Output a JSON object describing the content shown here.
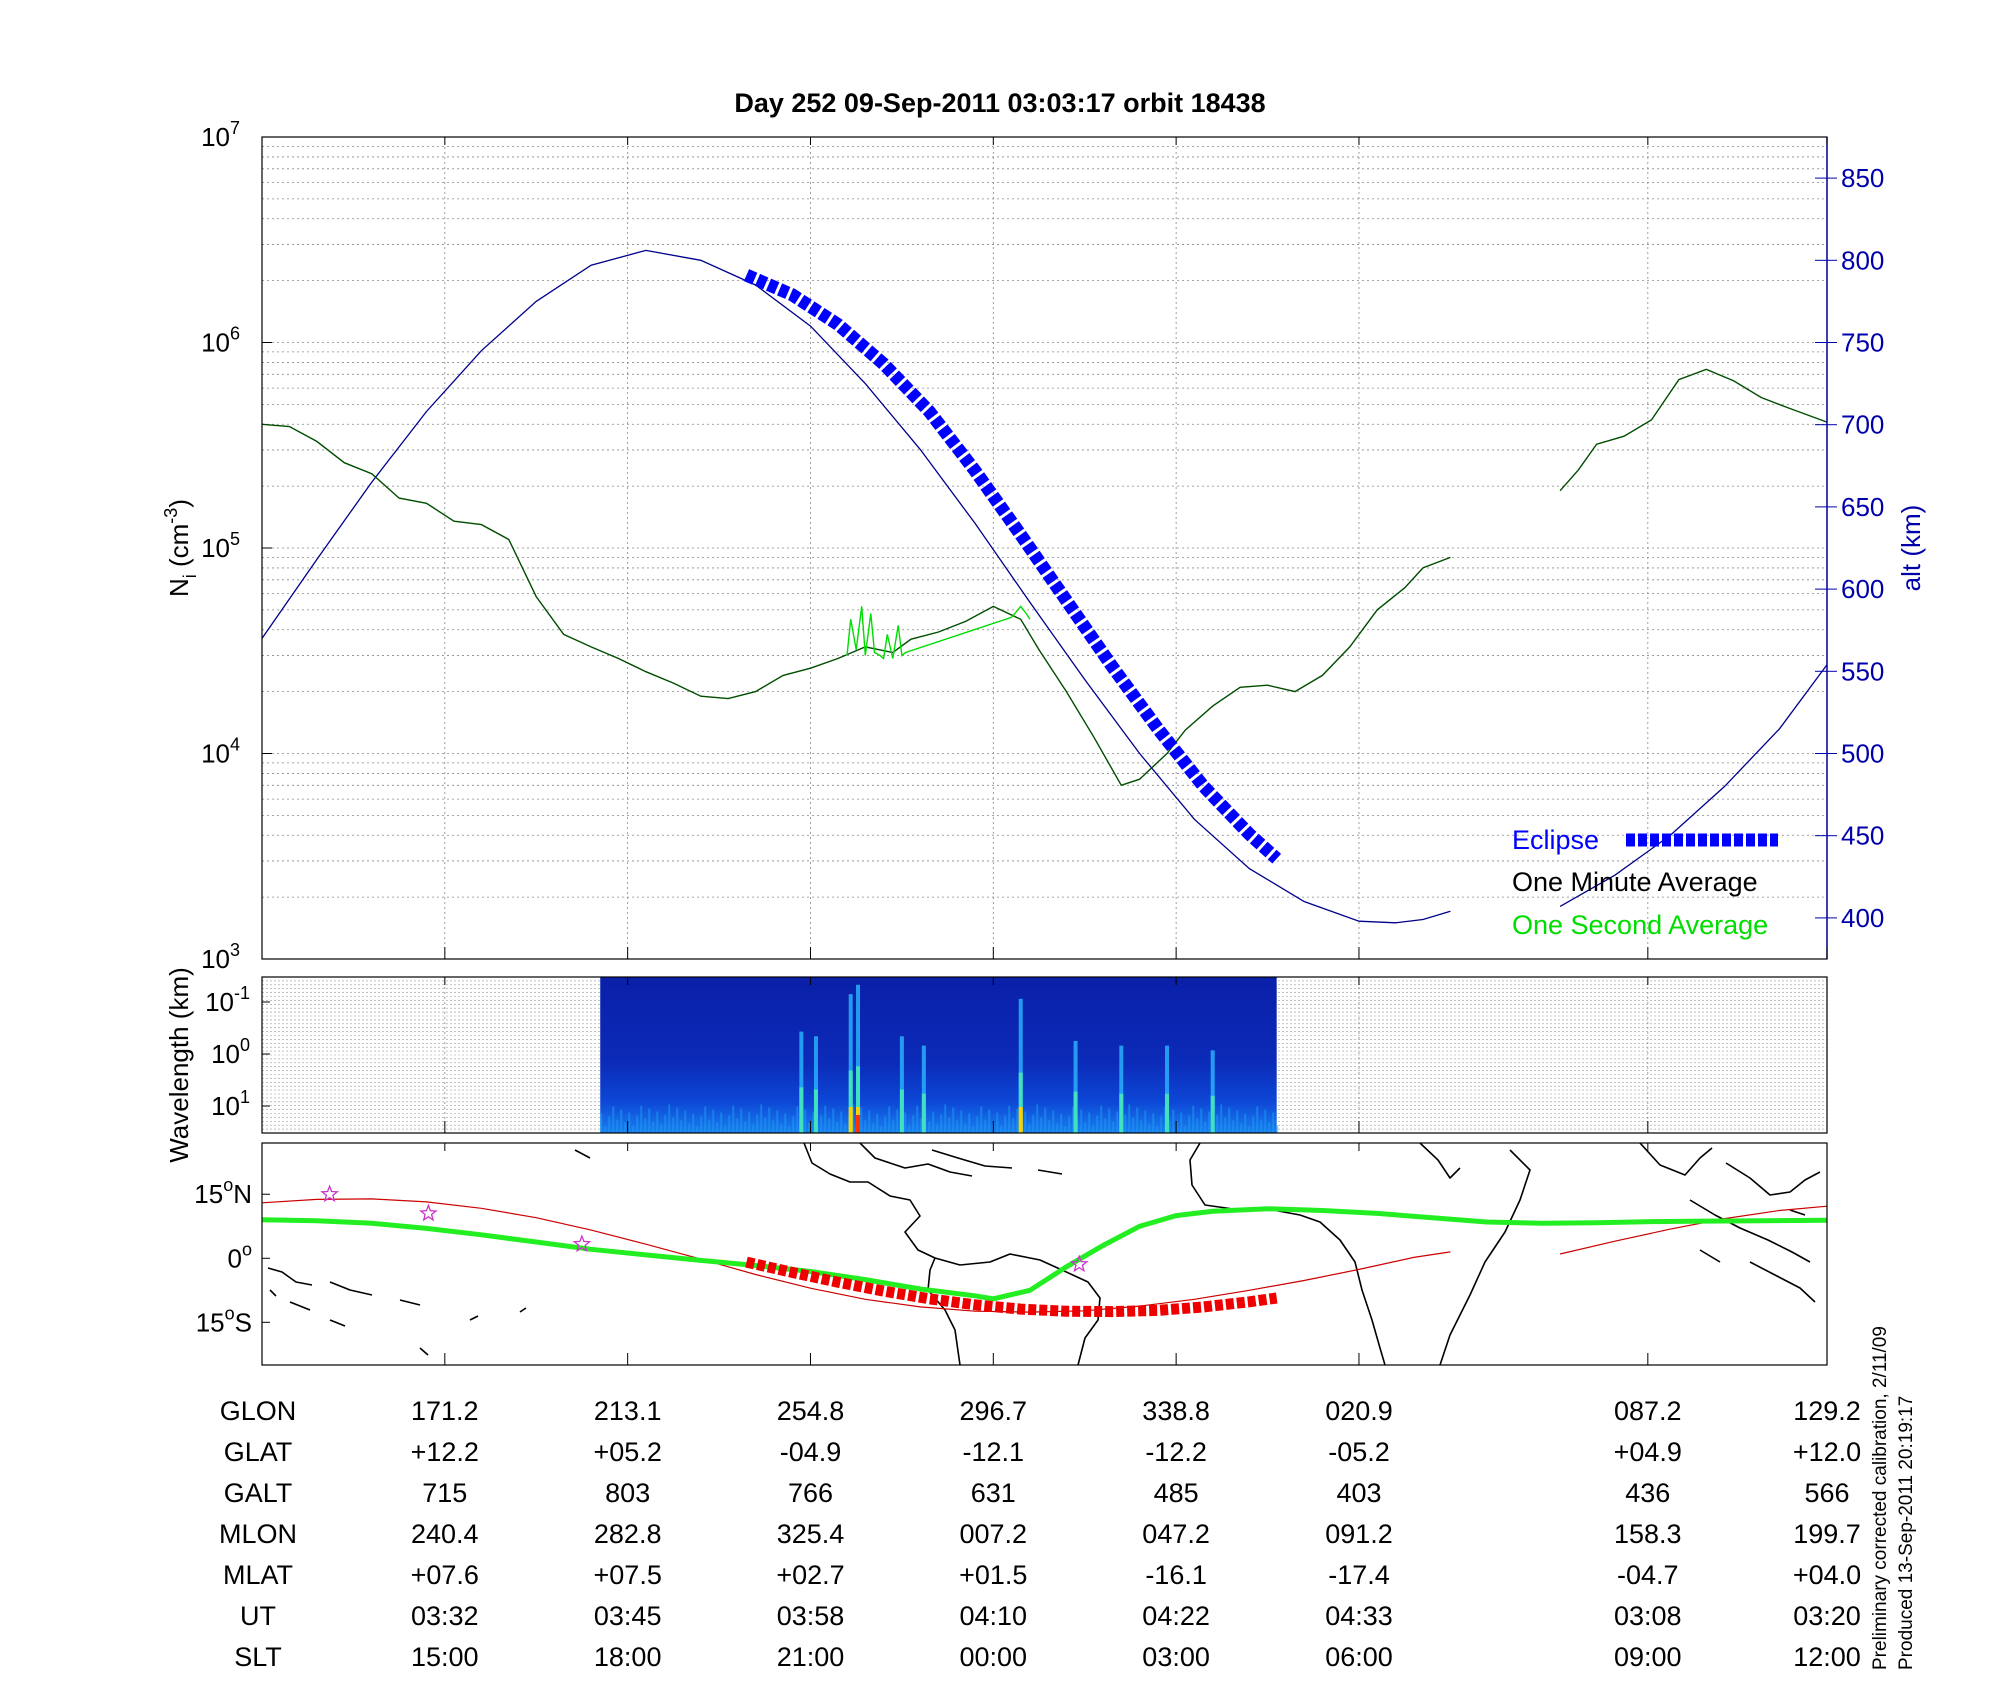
{
  "title": "Day 252  09-Sep-2011 03:03:17   orbit 18438",
  "colors": {
    "altitude": "#00008b",
    "ion_density": "#004d00",
    "one_second": "#00dd00",
    "eclipse": "#0000ff",
    "eclipse_ground": "#ee0000",
    "ground_track": "#cc0000",
    "magnetic_equator": "#22ee22",
    "star": "#cc33cc",
    "grid": "#888888",
    "right_axis": "#0000aa"
  },
  "legend": {
    "eclipse": "Eclipse",
    "one_minute": "One Minute Average",
    "one_second": "One Second Average",
    "placement": "bottom-right"
  },
  "chart_data": [
    {
      "id": "density",
      "type": "line",
      "scale": "log",
      "ylabel": "N",
      "ylabel_sub": "i",
      "ylabel_unit": " (cm",
      "ylabel_exp": "-3",
      "ylabel_close": ")",
      "ylim": [
        1000,
        10000000
      ],
      "yticks": [
        {
          "base": "10",
          "exp": "3",
          "value": 1000
        },
        {
          "base": "10",
          "exp": "4",
          "value": 10000
        },
        {
          "base": "10",
          "exp": "5",
          "value": 100000
        },
        {
          "base": "10",
          "exp": "6",
          "value": 1000000
        },
        {
          "base": "10",
          "exp": "7",
          "value": 10000000
        }
      ],
      "xlim": [
        0,
        8.56
      ],
      "grid": true,
      "series": [
        {
          "key": "one_minute",
          "x": [
            0,
            0.15,
            0.3,
            0.45,
            0.6,
            0.75,
            0.9,
            1.05,
            1.2,
            1.35,
            1.5,
            1.65,
            1.8,
            1.95,
            2.1,
            2.25,
            2.4,
            2.55,
            2.7,
            2.85,
            3.0,
            3.15,
            3.3,
            3.45,
            3.55,
            3.7,
            3.85,
            4.0,
            4.15,
            4.25,
            4.4,
            4.55,
            4.7,
            4.8,
            4.95,
            5.05,
            5.2,
            5.35,
            5.5,
            5.65,
            5.8,
            5.95,
            6.1,
            6.25,
            6.35,
            6.5
          ],
          "y": [
            400000,
            390000,
            330000,
            260000,
            230000,
            175000,
            165000,
            135000,
            130000,
            110000,
            58000,
            38000,
            33000,
            29000,
            25000,
            22000,
            19000,
            18500,
            20000,
            24000,
            26000,
            29000,
            33000,
            31000,
            36000,
            39000,
            44000,
            52000,
            45000,
            32000,
            20000,
            12000,
            7000,
            7500,
            10000,
            13000,
            17000,
            21000,
            21500,
            20000,
            24000,
            33000,
            50000,
            64000,
            80000,
            90000
          ]
        },
        {
          "key": "one_minute_b",
          "x": [
            7.1,
            7.2,
            7.3,
            7.45,
            7.6,
            7.75,
            7.9,
            8.05,
            8.2,
            8.35,
            8.56
          ],
          "y": [
            190000,
            240000,
            320000,
            350000,
            420000,
            660000,
            740000,
            650000,
            540000,
            480000,
            410000
          ]
        },
        {
          "key": "one_second",
          "x": [
            3.2,
            3.22,
            3.25,
            3.28,
            3.3,
            3.33,
            3.35,
            3.38,
            3.4,
            3.42,
            3.45,
            3.48,
            3.5,
            3.52,
            4.1,
            4.15,
            4.18,
            4.2
          ],
          "y": [
            30000,
            45000,
            32000,
            52000,
            30000,
            48000,
            31000,
            30000,
            29000,
            38000,
            29000,
            42000,
            30000,
            31000,
            46000,
            52000,
            48000,
            45000
          ]
        }
      ]
    },
    {
      "id": "altitude",
      "type": "line",
      "ylabel": "alt (km)",
      "ylim": [
        375,
        875
      ],
      "yticks": [
        400,
        450,
        500,
        550,
        600,
        650,
        700,
        750,
        800,
        850
      ],
      "series": [
        {
          "key": "altitude",
          "x": [
            0,
            0.3,
            0.6,
            0.9,
            1.2,
            1.5,
            1.8,
            2.1,
            2.4,
            2.7,
            3.0,
            3.3,
            3.6,
            3.9,
            4.2,
            4.5,
            4.8,
            5.1,
            5.4,
            5.7,
            6.0,
            6.2,
            6.35,
            6.5
          ],
          "y": [
            570,
            618,
            665,
            708,
            745,
            775,
            797,
            806,
            800,
            785,
            760,
            725,
            685,
            640,
            592,
            545,
            500,
            460,
            430,
            410,
            398,
            397,
            399,
            404
          ]
        },
        {
          "key": "altitude_b",
          "x": [
            7.1,
            7.4,
            7.7,
            8.0,
            8.3,
            8.56
          ],
          "y": [
            407,
            426,
            450,
            480,
            515,
            554
          ]
        },
        {
          "key": "eclipse",
          "x": [
            2.65,
            2.9,
            3.15,
            3.4,
            3.65,
            3.9,
            4.15,
            4.4,
            4.65,
            4.9,
            5.15,
            5.4,
            5.55
          ],
          "y": [
            791,
            779,
            761,
            737,
            708,
            672,
            633,
            593,
            553,
            515,
            480,
            451,
            436
          ]
        }
      ]
    },
    {
      "id": "spectrogram",
      "type": "heatmap",
      "ylabel": "Wavelength (km)",
      "yticks": [
        {
          "base": "10",
          "exp": "-1"
        },
        {
          "base": "10",
          "exp": "0"
        },
        {
          "base": "10",
          "exp": "1"
        }
      ],
      "x_range": [
        1.85,
        5.55
      ],
      "spikes": [
        {
          "x": 2.95,
          "strength": 0.5
        },
        {
          "x": 3.03,
          "strength": 0.45
        },
        {
          "x": 3.22,
          "strength": 0.9
        },
        {
          "x": 3.26,
          "strength": 1.0
        },
        {
          "x": 3.5,
          "strength": 0.45
        },
        {
          "x": 3.62,
          "strength": 0.35
        },
        {
          "x": 4.15,
          "strength": 0.85
        },
        {
          "x": 4.45,
          "strength": 0.4
        },
        {
          "x": 4.7,
          "strength": 0.35
        },
        {
          "x": 4.95,
          "strength": 0.35
        },
        {
          "x": 5.2,
          "strength": 0.3
        }
      ]
    },
    {
      "id": "map",
      "type": "line",
      "yticks": [
        {
          "label": "15",
          "suffix": "N",
          "value": 15
        },
        {
          "label": "0",
          "suffix": "",
          "value": 0
        },
        {
          "label": "15",
          "suffix": "S",
          "value": -15
        }
      ],
      "ylim": [
        -25,
        27
      ],
      "series": [
        {
          "key": "ground_track",
          "x": [
            0,
            0.3,
            0.6,
            0.9,
            1.2,
            1.5,
            1.8,
            2.1,
            2.4,
            2.7,
            3.0,
            3.3,
            3.6,
            3.9,
            4.2,
            4.5,
            4.8,
            5.1,
            5.4,
            5.7,
            6.0,
            6.3,
            6.5
          ],
          "y": [
            13,
            13.8,
            13.9,
            13.2,
            11.7,
            9.5,
            6.6,
            3.3,
            -0.2,
            -3.8,
            -7.0,
            -9.6,
            -11.4,
            -12.4,
            -12.6,
            -12.3,
            -11.2,
            -9.6,
            -7.5,
            -5.2,
            -2.6,
            0.2,
            1.5
          ]
        },
        {
          "key": "ground_track_b",
          "x": [
            7.1,
            7.4,
            7.7,
            8.0,
            8.3,
            8.56
          ],
          "y": [
            1.0,
            4.0,
            6.8,
            9.3,
            11.2,
            12.2
          ]
        },
        {
          "key": "magnetic_equator",
          "x": [
            0,
            0.3,
            0.6,
            0.9,
            1.2,
            1.5,
            1.8,
            2.1,
            2.4,
            2.7,
            3.0,
            3.3,
            3.6,
            3.9,
            4.0,
            4.2,
            4.4,
            4.6,
            4.8,
            5.0,
            5.2,
            5.5,
            5.8,
            6.1,
            6.4,
            6.7,
            7.0,
            7.3,
            7.6,
            7.9,
            8.2,
            8.56
          ],
          "y": [
            9,
            8.8,
            8.2,
            7.0,
            5.5,
            3.8,
            2.1,
            0.8,
            -0.5,
            -1.7,
            -3.1,
            -5.0,
            -7.2,
            -8.8,
            -9.5,
            -7.5,
            -2.0,
            3.0,
            7.5,
            10.0,
            11.0,
            11.6,
            11.2,
            10.5,
            9.5,
            8.5,
            8.2,
            8.3,
            8.6,
            8.7,
            8.8,
            8.9
          ]
        },
        {
          "key": "eclipse_ground",
          "x": [
            2.65,
            2.9,
            3.15,
            3.4,
            3.65,
            3.9,
            4.15,
            4.4,
            4.65,
            4.9,
            5.15,
            5.4,
            5.55
          ],
          "y": [
            -0.9,
            -3.3,
            -5.6,
            -7.7,
            -9.5,
            -10.9,
            -11.9,
            -12.4,
            -12.5,
            -12.2,
            -11.4,
            -10.2,
            -9.3
          ]
        }
      ],
      "stars": [
        {
          "x": 0.37,
          "y": 15
        },
        {
          "x": 0.91,
          "y": 10.5
        },
        {
          "x": 1.75,
          "y": 3.3
        },
        {
          "x": 4.47,
          "y": -1.4
        }
      ]
    }
  ],
  "orbit_table": {
    "ticks_x": [
      1,
      2,
      3,
      4,
      5,
      6,
      7.58,
      8.56
    ],
    "rows": [
      {
        "label": "GLON",
        "values": [
          "171.2",
          "213.1",
          "254.8",
          "296.7",
          "338.8",
          "020.9",
          "087.2",
          "129.2"
        ]
      },
      {
        "label": "GLAT",
        "values": [
          "+12.2",
          "+05.2",
          "-04.9",
          "-12.1",
          "-12.2",
          "-05.2",
          "+04.9",
          "+12.0"
        ]
      },
      {
        "label": "GALT",
        "values": [
          "715",
          "803",
          "766",
          "631",
          "485",
          "403",
          "436",
          "566"
        ]
      },
      {
        "label": "MLON",
        "values": [
          "240.4",
          "282.8",
          "325.4",
          "007.2",
          "047.2",
          "091.2",
          "158.3",
          "199.7"
        ]
      },
      {
        "label": "MLAT",
        "values": [
          "+07.6",
          "+07.5",
          "+02.7",
          "+01.5",
          "-16.1",
          "-17.4",
          "-04.7",
          "+04.0"
        ]
      },
      {
        "label": "UT",
        "values": [
          "03:32",
          "03:45",
          "03:58",
          "04:10",
          "04:22",
          "04:33",
          "03:08",
          "03:20"
        ]
      },
      {
        "label": "SLT",
        "values": [
          "15:00",
          "18:00",
          "21:00",
          "00:00",
          "03:00",
          "06:00",
          "09:00",
          "12:00"
        ]
      }
    ]
  },
  "footer": {
    "line1": "Preliminary corrected calibration, 2/11/09",
    "line2": "Produced 13-Sep-2011 20:19:17"
  }
}
